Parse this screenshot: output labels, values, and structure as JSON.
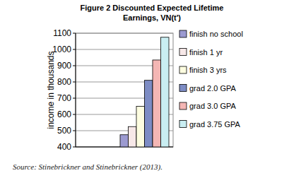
{
  "chart_data": {
    "type": "bar",
    "title": "Figure 2 Discounted Expected Lifetime Earnings, VN(t')",
    "y_label": "income in thousands",
    "categories": [
      "finish no school",
      "finish 1 yr",
      "finish 3 yrs",
      "grad 2.0 GPA",
      "grad 3.0 GPA",
      "grad 3.75 GPA"
    ],
    "values": [
      475,
      525,
      650,
      810,
      935,
      1075
    ],
    "colors": [
      "#9c9ad0",
      "#f7e8e8",
      "#fdfde0",
      "#7d8cc4",
      "#f4b6b4",
      "#c9eef2"
    ],
    "ylim": [
      400,
      1100
    ],
    "yticks": [
      400,
      500,
      600,
      700,
      800,
      900,
      1000,
      1100
    ],
    "grid": true,
    "legend": "right",
    "tick_labels": "y",
    "annotations": [
      "Source: Stinebrickner and Stinebrickner (2013)."
    ]
  }
}
